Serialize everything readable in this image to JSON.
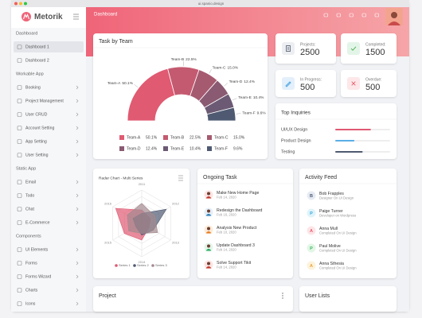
{
  "browser": {
    "url": "ui.spanio.design"
  },
  "sidebar": {
    "brand": "Metorik",
    "sections": [
      {
        "title": "Dashboard",
        "items": [
          "Dashboard 1",
          "Dashboard 2"
        ]
      },
      {
        "title": "Workable App",
        "items": [
          "Booking",
          "Project Management",
          "User CRUD",
          "Account Setting",
          "App Setting",
          "User Setting"
        ]
      },
      {
        "title": "Static App",
        "items": [
          "Email",
          "Todo",
          "Chat",
          "E-Commerce"
        ]
      },
      {
        "title": "Components",
        "items": [
          "UI Elements",
          "Forms",
          "Forms Wizard",
          "Charts",
          "Icons"
        ]
      }
    ]
  },
  "header": {
    "title": "Dashboard"
  },
  "task_by_team": {
    "type": "semi-donut",
    "title": "Task by Team",
    "categories": [
      "Team-A",
      "Team-B",
      "Team-C",
      "Team-D",
      "Team-E",
      "Team-F"
    ],
    "values": [
      50.1,
      22.5,
      15.0,
      12.4,
      10.4,
      9.6
    ],
    "value_labels": [
      "50.1%",
      "22.5%",
      "15.0%",
      "12.4%",
      "10.4%",
      "9.6%"
    ],
    "colors": [
      "#e05a72",
      "#c45a70",
      "#a65a70",
      "#8a5a72",
      "#6c5a74",
      "#4f5a72"
    ]
  },
  "stats": [
    {
      "label": "Projects:",
      "value": 2500
    },
    {
      "label": "Completed:",
      "value": 1500
    },
    {
      "label": "In Progress:",
      "value": 500
    },
    {
      "label": "Overdue:",
      "value": 500
    }
  ],
  "top_inquiries": {
    "title": "Top Inquiries",
    "xlim": [
      0,
      100
    ],
    "items": [
      {
        "name": "UI/UX Design",
        "value": 65,
        "color": "#e05a72"
      },
      {
        "name": "Product Design",
        "value": 35,
        "color": "#5aaee6"
      },
      {
        "name": "Testing",
        "value": 50,
        "color": "#4f5a72"
      }
    ]
  },
  "radar": {
    "type": "radar",
    "title": "Radar Chart - Multi Series",
    "categories": [
      "2011",
      "2012",
      "2013",
      "2014",
      "2015",
      "2016"
    ],
    "rlim": [
      0,
      100
    ],
    "series": [
      {
        "name": "Series 1",
        "color": "#e05a72",
        "values": [
          40,
          30,
          25,
          50,
          60,
          90
        ]
      },
      {
        "name": "Series 2",
        "color": "#4f5a72",
        "values": [
          30,
          85,
          40,
          35,
          20,
          30
        ]
      },
      {
        "name": "Series 3",
        "color": "#a3898e",
        "values": [
          60,
          45,
          55,
          30,
          45,
          50
        ]
      }
    ]
  },
  "ongoing_task": {
    "title": "Ongoing Task",
    "items": [
      {
        "title": "Make New Home Page",
        "date": "Feb 14, 2020"
      },
      {
        "title": "Redesign the Dashboard",
        "date": "Feb 16, 2020"
      },
      {
        "title": "Analysis New Product",
        "date": "Feb 10, 2020"
      },
      {
        "title": "Update Dashboard 3",
        "date": "Feb 14, 2020"
      },
      {
        "title": "Solve Support Tikit",
        "date": "Feb 14, 2020"
      }
    ]
  },
  "activity_feed": {
    "title": "Activity Feed",
    "items": [
      {
        "initial": "B",
        "name": "Bob Frapples",
        "detail": "Designer On UI Design"
      },
      {
        "initial": "P",
        "name": "Paige Turner",
        "detail": "Developer on Wordpress"
      },
      {
        "initial": "A",
        "name": "Anna Mull",
        "detail": "Completed On UI Design"
      },
      {
        "initial": "P",
        "name": "Paul Molive",
        "detail": "Completed On UI Design"
      },
      {
        "initial": "A",
        "name": "Anna Sthesia",
        "detail": "Completed On UI Design"
      }
    ]
  },
  "project": {
    "title": "Project"
  },
  "user_lists": {
    "title": "User Lists"
  }
}
